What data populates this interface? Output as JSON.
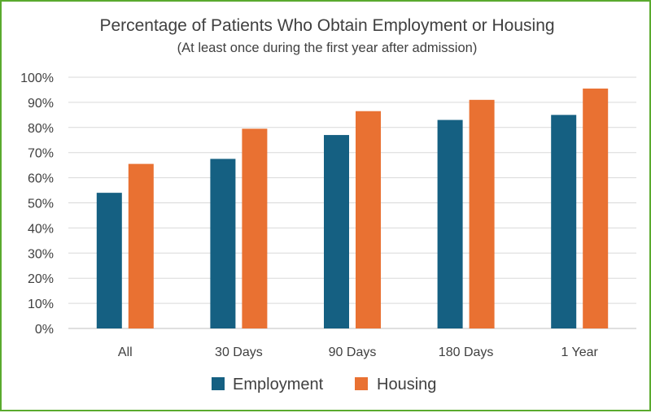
{
  "chart_data": {
    "type": "bar",
    "title": "Percentage of Patients Who Obtain Employment or Housing",
    "subtitle": "(At least once during the first year after admission)",
    "categories": [
      "All",
      "30 Days",
      "90 Days",
      "180 Days",
      "1 Year"
    ],
    "series": [
      {
        "name": "Employment",
        "color": "#156082",
        "values": [
          54,
          67.5,
          77,
          83,
          85
        ]
      },
      {
        "name": "Housing",
        "color": "#e97132",
        "values": [
          65.5,
          79.5,
          86.5,
          91,
          95.5
        ]
      }
    ],
    "ylim": [
      0,
      100
    ],
    "yticks": [
      "0%",
      "10%",
      "20%",
      "30%",
      "40%",
      "50%",
      "60%",
      "70%",
      "80%",
      "90%",
      "100%"
    ],
    "grid": true,
    "legend_position": "bottom",
    "border_color": "#5aaa2e"
  }
}
